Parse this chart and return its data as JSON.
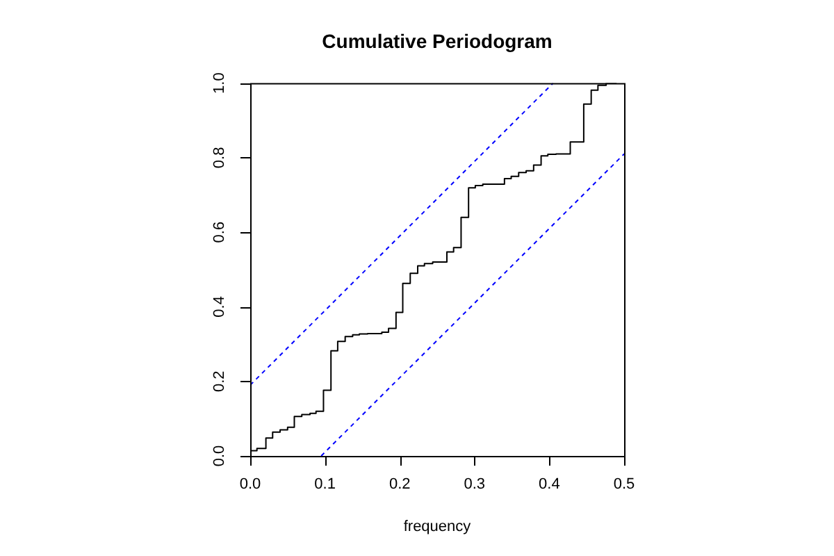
{
  "chart_data": {
    "type": "step",
    "title": "Cumulative Periodogram",
    "xlabel": "frequency",
    "xlim": [
      0,
      0.5
    ],
    "ylim": [
      0,
      1
    ],
    "xticks": [
      {
        "value": 0,
        "label": "0.0"
      },
      0.1,
      0.2,
      0.3,
      0.4,
      0.5
    ],
    "yticks": [
      {
        "value": 0,
        "label": "0.0"
      },
      0.2,
      0.4,
      0.6,
      0.8,
      {
        "value": 1,
        "label": "1.0"
      }
    ],
    "legend": false,
    "marker": "none",
    "series": [
      {
        "color": "#000000",
        "line_style": "solid",
        "x": [
          0,
          0.009,
          0.021,
          0.03,
          0.04,
          0.05,
          0.059,
          0.069,
          0.08,
          0.088,
          0.098,
          0.108,
          0.117,
          0.127,
          0.137,
          0.146,
          0.157,
          0.176,
          0.185,
          0.195,
          0.204,
          0.214,
          0.224,
          0.233,
          0.244,
          0.263,
          0.272,
          0.282,
          0.292,
          0.301,
          0.311,
          0.34,
          0.349,
          0.359,
          0.369,
          0.379,
          0.389,
          0.398,
          0.409,
          0.428,
          0.446,
          0.456,
          0.465,
          0.476,
          0.485,
          0.49
        ],
        "values": [
          0,
          0.014,
          0.02,
          0.048,
          0.064,
          0.07,
          0.077,
          0.106,
          0.111,
          0.114,
          0.12,
          0.176,
          0.282,
          0.307,
          0.32,
          0.325,
          0.327,
          0.328,
          0.332,
          0.342,
          0.385,
          0.463,
          0.49,
          0.51,
          0.516,
          0.52,
          0.547,
          0.559,
          0.64,
          0.719,
          0.725,
          0.729,
          0.744,
          0.75,
          0.76,
          0.765,
          0.78,
          0.805,
          0.809,
          0.81,
          0.842,
          0.944,
          0.981,
          0.994,
          1,
          1
        ]
      },
      {
        "type": "line",
        "color": "#0000ff",
        "line_style": "dashed",
        "x": [
          0,
          0.405
        ],
        "values": [
          0.19,
          1
        ]
      },
      {
        "type": "line",
        "color": "#0000ff",
        "line_style": "dashed",
        "x": [
          0.095,
          0.5
        ],
        "values": [
          0,
          0.81
        ]
      }
    ]
  }
}
